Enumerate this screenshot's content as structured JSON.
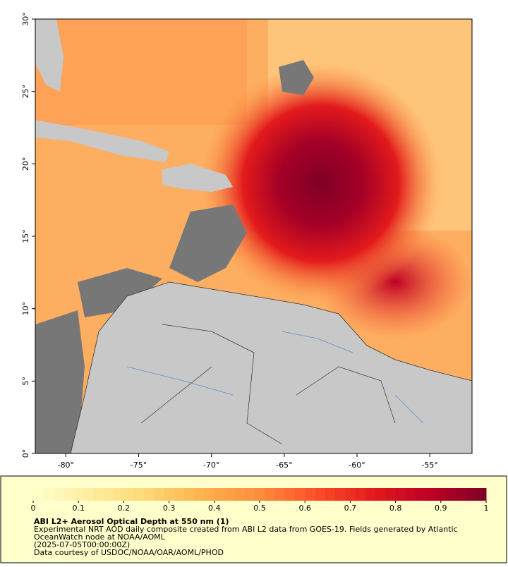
{
  "map": {
    "lonlim": [
      -82.1,
      -52.1
    ],
    "latlim": [
      0,
      30
    ],
    "lon_ticks": [
      {
        "value": -80,
        "label": "-80°"
      },
      {
        "value": -75,
        "label": "-75°"
      },
      {
        "value": -70,
        "label": "-70°"
      },
      {
        "value": -65,
        "label": "-65°"
      },
      {
        "value": -60,
        "label": "-60°"
      },
      {
        "value": -55,
        "label": "-55°"
      }
    ],
    "lat_ticks": [
      {
        "value": 0,
        "label": "0°"
      },
      {
        "value": 5,
        "label": "5°"
      },
      {
        "value": 10,
        "label": "10°"
      },
      {
        "value": 15,
        "label": "15°"
      },
      {
        "value": 20,
        "label": "20°"
      },
      {
        "value": 25,
        "label": "25°"
      },
      {
        "value": 30,
        "label": "30°"
      }
    ]
  },
  "colorbar": {
    "lim": [
      0,
      1
    ],
    "ticks": [
      0,
      0.1,
      0.2,
      0.3,
      0.4,
      0.5,
      0.6,
      0.7,
      0.8,
      0.9,
      1
    ],
    "colors": [
      "#ffffcc",
      "#ffeda0",
      "#fed976",
      "#feb24c",
      "#fd8d3c",
      "#fc4e2a",
      "#e31a1c",
      "#bd0026",
      "#800026"
    ]
  },
  "caption": {
    "title": "ABI L2+ Aerosol Optical Depth at 550 nm (1)",
    "lines": [
      "Experimental NRT AOD daily composite created from ABI L2 data from GOES-19. Fields generated by Atlantic",
      "OceanWatch node at NOAA/AOML",
      "(2025-07-05T00:00:00Z)",
      "Data courtesy of USDOC/NOAA/OAR/AOML/PHOD"
    ]
  }
}
